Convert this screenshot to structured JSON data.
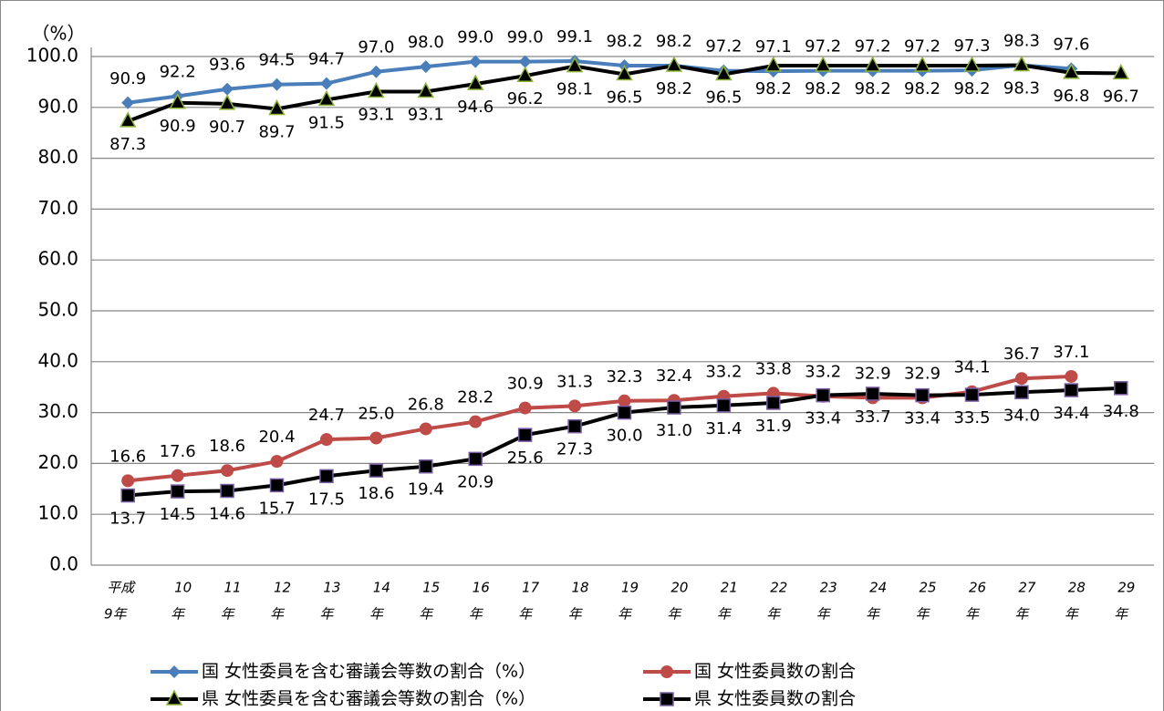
{
  "chart_data": {
    "type": "line",
    "y_label": "（%）",
    "categories": [
      [
        "平成",
        "9年"
      ],
      [
        "10",
        "年"
      ],
      [
        "11",
        "年"
      ],
      [
        "12",
        "年"
      ],
      [
        "13",
        "年"
      ],
      [
        "14",
        "年"
      ],
      [
        "15",
        "年"
      ],
      [
        "16",
        "年"
      ],
      [
        "17",
        "年"
      ],
      [
        "18",
        "年"
      ],
      [
        "19",
        "年"
      ],
      [
        "20",
        "年"
      ],
      [
        "21",
        "年"
      ],
      [
        "22",
        "年"
      ],
      [
        "23",
        "年"
      ],
      [
        "24",
        "年"
      ],
      [
        "25",
        "年"
      ],
      [
        "26",
        "年"
      ],
      [
        "27",
        "年"
      ],
      [
        "28",
        "年"
      ],
      [
        "29",
        "年"
      ]
    ],
    "ylim": [
      0,
      100
    ],
    "yticks": [
      {
        "value": 0,
        "label": "0.0"
      },
      {
        "value": 10,
        "label": "10.0"
      },
      {
        "value": 20,
        "label": "20.0"
      },
      {
        "value": 30,
        "label": "30.0"
      },
      {
        "value": 40,
        "label": "40.0"
      },
      {
        "value": 50,
        "label": "50.0"
      },
      {
        "value": 60,
        "label": "60.0"
      },
      {
        "value": 70,
        "label": "70.0"
      },
      {
        "value": 80,
        "label": "80.0"
      },
      {
        "value": 90,
        "label": "90.0"
      },
      {
        "value": 100,
        "label": "100.0"
      }
    ],
    "grid": true,
    "series": [
      {
        "name": "国 女性委員を含む審議会等数の割合（%）",
        "color": "#4a7ebb",
        "marker": "diamond",
        "label_side": "above",
        "values": [
          90.9,
          92.2,
          93.6,
          94.5,
          94.7,
          97.0,
          98.0,
          99.0,
          99.0,
          99.1,
          98.2,
          98.2,
          97.2,
          97.1,
          97.2,
          97.2,
          97.2,
          97.3,
          98.3,
          97.6,
          null
        ],
        "value_labels": [
          "90.9",
          "92.2",
          "93.6",
          "94.5",
          "94.7",
          "97.0",
          "98.0",
          "99.0",
          "99.0",
          "99.1",
          "98.2",
          "98.2",
          "97.2",
          "97.1",
          "97.2",
          "97.2",
          "97.2",
          "97.3",
          "98.3",
          "97.6",
          null
        ]
      },
      {
        "name": "国 女性委員数の割合",
        "color": "#be4b48",
        "marker": "circle",
        "label_side": "above",
        "values": [
          16.6,
          17.6,
          18.6,
          20.4,
          24.7,
          25.0,
          26.8,
          28.2,
          30.9,
          31.3,
          32.3,
          32.4,
          33.2,
          33.8,
          33.2,
          32.9,
          32.9,
          34.1,
          36.7,
          37.1,
          null
        ],
        "value_labels": [
          "16.6",
          "17.6",
          "18.6",
          "20.4",
          "24.7",
          "25.0",
          "26.8",
          "28.2",
          "30.9",
          "31.3",
          "32.3",
          "32.4",
          "33.2",
          "33.8",
          "33.2",
          "32.9",
          "32.9",
          "34.1",
          "36.7",
          "37.1",
          null
        ]
      },
      {
        "name": "県 女性委員を含む審議会等数の割合（%）",
        "color": "#000000",
        "marker": "triangle",
        "label_side": "below",
        "values": [
          87.3,
          90.9,
          90.7,
          89.7,
          91.5,
          93.1,
          93.1,
          94.6,
          96.2,
          98.1,
          96.5,
          98.2,
          96.5,
          98.2,
          98.2,
          98.2,
          98.2,
          98.2,
          98.3,
          96.8,
          96.7
        ],
        "value_labels": [
          "87.3",
          "90.9",
          "90.7",
          "89.7",
          "91.5",
          "93.1",
          "93.1",
          "94.6",
          "96.2",
          "98.1",
          "96.5",
          "98.2",
          "96.5",
          "98.2",
          "98.2",
          "98.2",
          "98.2",
          "98.2",
          "98.3",
          "96.8",
          "96.7"
        ]
      },
      {
        "name": "県 女性委員数の割合",
        "color": "#000000",
        "marker": "square",
        "label_side": "below",
        "values": [
          13.7,
          14.5,
          14.6,
          15.7,
          17.5,
          18.6,
          19.4,
          20.9,
          25.6,
          27.3,
          30.0,
          31.0,
          31.4,
          31.9,
          33.4,
          33.7,
          33.4,
          33.5,
          34.0,
          34.4,
          34.8
        ],
        "value_labels": [
          "13.7",
          "14.5",
          "14.6",
          "15.7",
          "17.5",
          "18.6",
          "19.4",
          "20.9",
          "25.6",
          "27.3",
          "30.0",
          "31.0",
          "31.4",
          "31.9",
          "33.4",
          "33.7",
          "33.4",
          "33.5",
          "34.0",
          "34.4",
          "34.8"
        ]
      }
    ]
  }
}
